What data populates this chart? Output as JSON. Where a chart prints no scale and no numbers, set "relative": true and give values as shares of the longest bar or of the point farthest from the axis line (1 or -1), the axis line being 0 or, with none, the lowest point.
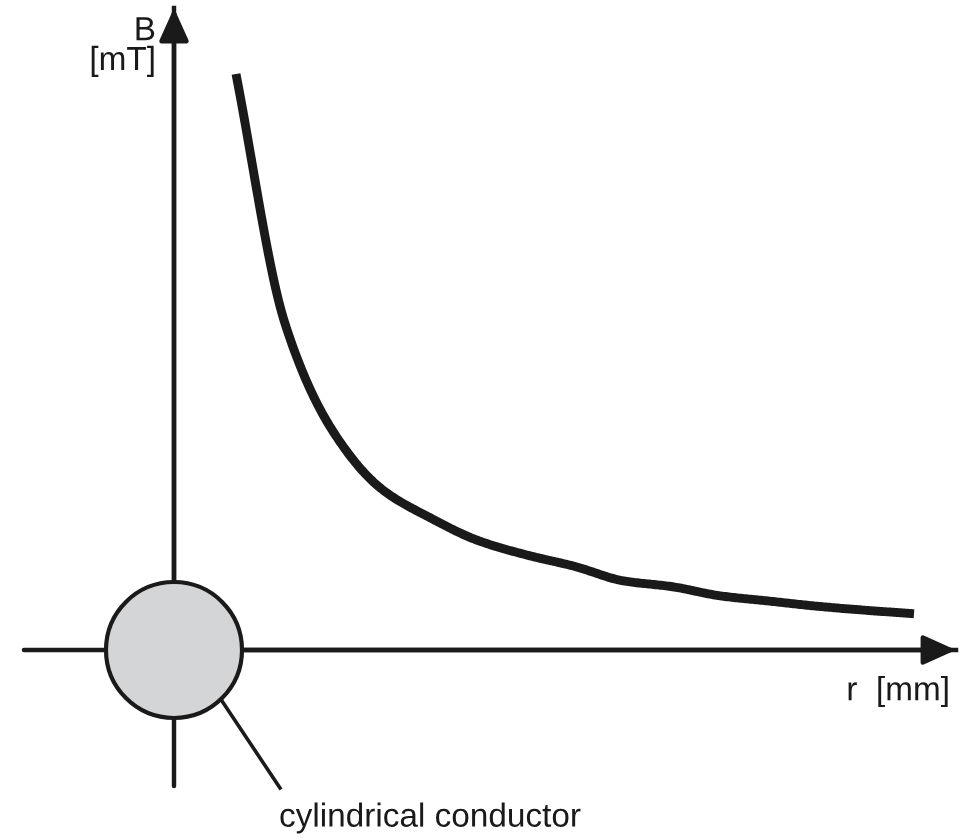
{
  "chart_data": {
    "type": "line",
    "relative": true,
    "xlabel": "r  [mm]",
    "ylabel": "B\n[mT]",
    "color": "#1a1a1a",
    "categories": [
      null,
      null,
      null,
      null,
      null,
      null,
      null,
      null,
      null,
      null,
      null,
      null,
      null,
      null,
      null
    ],
    "values": [
      1,
      0.57,
      0.38,
      0.28,
      0.23,
      0.19,
      0.165,
      0.145,
      0.12,
      0.11,
      0.094,
      0.085,
      0.076,
      0.069,
      0.063
    ],
    "annotations": [
      "cylindrical conductor"
    ]
  }
}
